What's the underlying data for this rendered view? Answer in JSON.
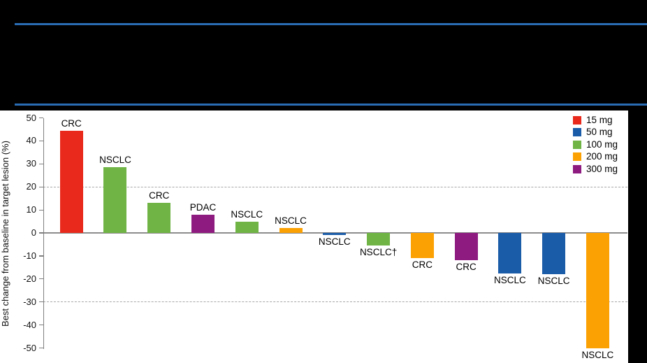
{
  "header": {
    "background": "#000000",
    "rule_color": "#2a6cb3"
  },
  "panel": {
    "background": "#ffffff"
  },
  "chart_data": {
    "type": "bar",
    "title": "",
    "xlabel": "",
    "ylabel": "Best change from baseline in target lesion (%)",
    "ylim": [
      -50,
      50
    ],
    "yticks": [
      50,
      40,
      30,
      20,
      10,
      0,
      -10,
      -20,
      -30,
      -40,
      -50
    ],
    "grid": "off",
    "reference_lines": {
      "values": [
        20,
        -30
      ],
      "style": "dashed",
      "color": "#a8a8a8"
    },
    "axis_color": "#7f7f7f",
    "zero_line_color": "#8c8c8c",
    "legend_position": "top-right",
    "legend": [
      {
        "label": "15 mg",
        "color": "#e8291c"
      },
      {
        "label": "50 mg",
        "color": "#1b5ca8"
      },
      {
        "label": "100 mg",
        "color": "#6fb445"
      },
      {
        "label": "200 mg",
        "color": "#fca103"
      },
      {
        "label": "300 mg",
        "color": "#8e1b80"
      }
    ],
    "bars": [
      {
        "label": "CRC",
        "dose": "15 mg",
        "value": 44.5
      },
      {
        "label": "NSCLC",
        "dose": "100 mg",
        "value": 28.5
      },
      {
        "label": "CRC",
        "dose": "100 mg",
        "value": 13
      },
      {
        "label": "PDAC",
        "dose": "300 mg",
        "value": 8
      },
      {
        "label": "NSCLC",
        "dose": "100 mg",
        "value": 5
      },
      {
        "label": "NSCLC",
        "dose": "200 mg",
        "value": 2
      },
      {
        "label": "NSCLC",
        "dose": "50 mg",
        "value": -1
      },
      {
        "label": "NSCLC†",
        "dose": "100 mg",
        "value": -5.5
      },
      {
        "label": "CRC",
        "dose": "200 mg",
        "value": -11
      },
      {
        "label": "CRC",
        "dose": "300 mg",
        "value": -12
      },
      {
        "label": "NSCLC",
        "dose": "50 mg",
        "value": -17.5
      },
      {
        "label": "NSCLC",
        "dose": "50 mg",
        "value": -18
      },
      {
        "label": "NSCLC",
        "dose": "200 mg",
        "value": -50
      }
    ]
  }
}
